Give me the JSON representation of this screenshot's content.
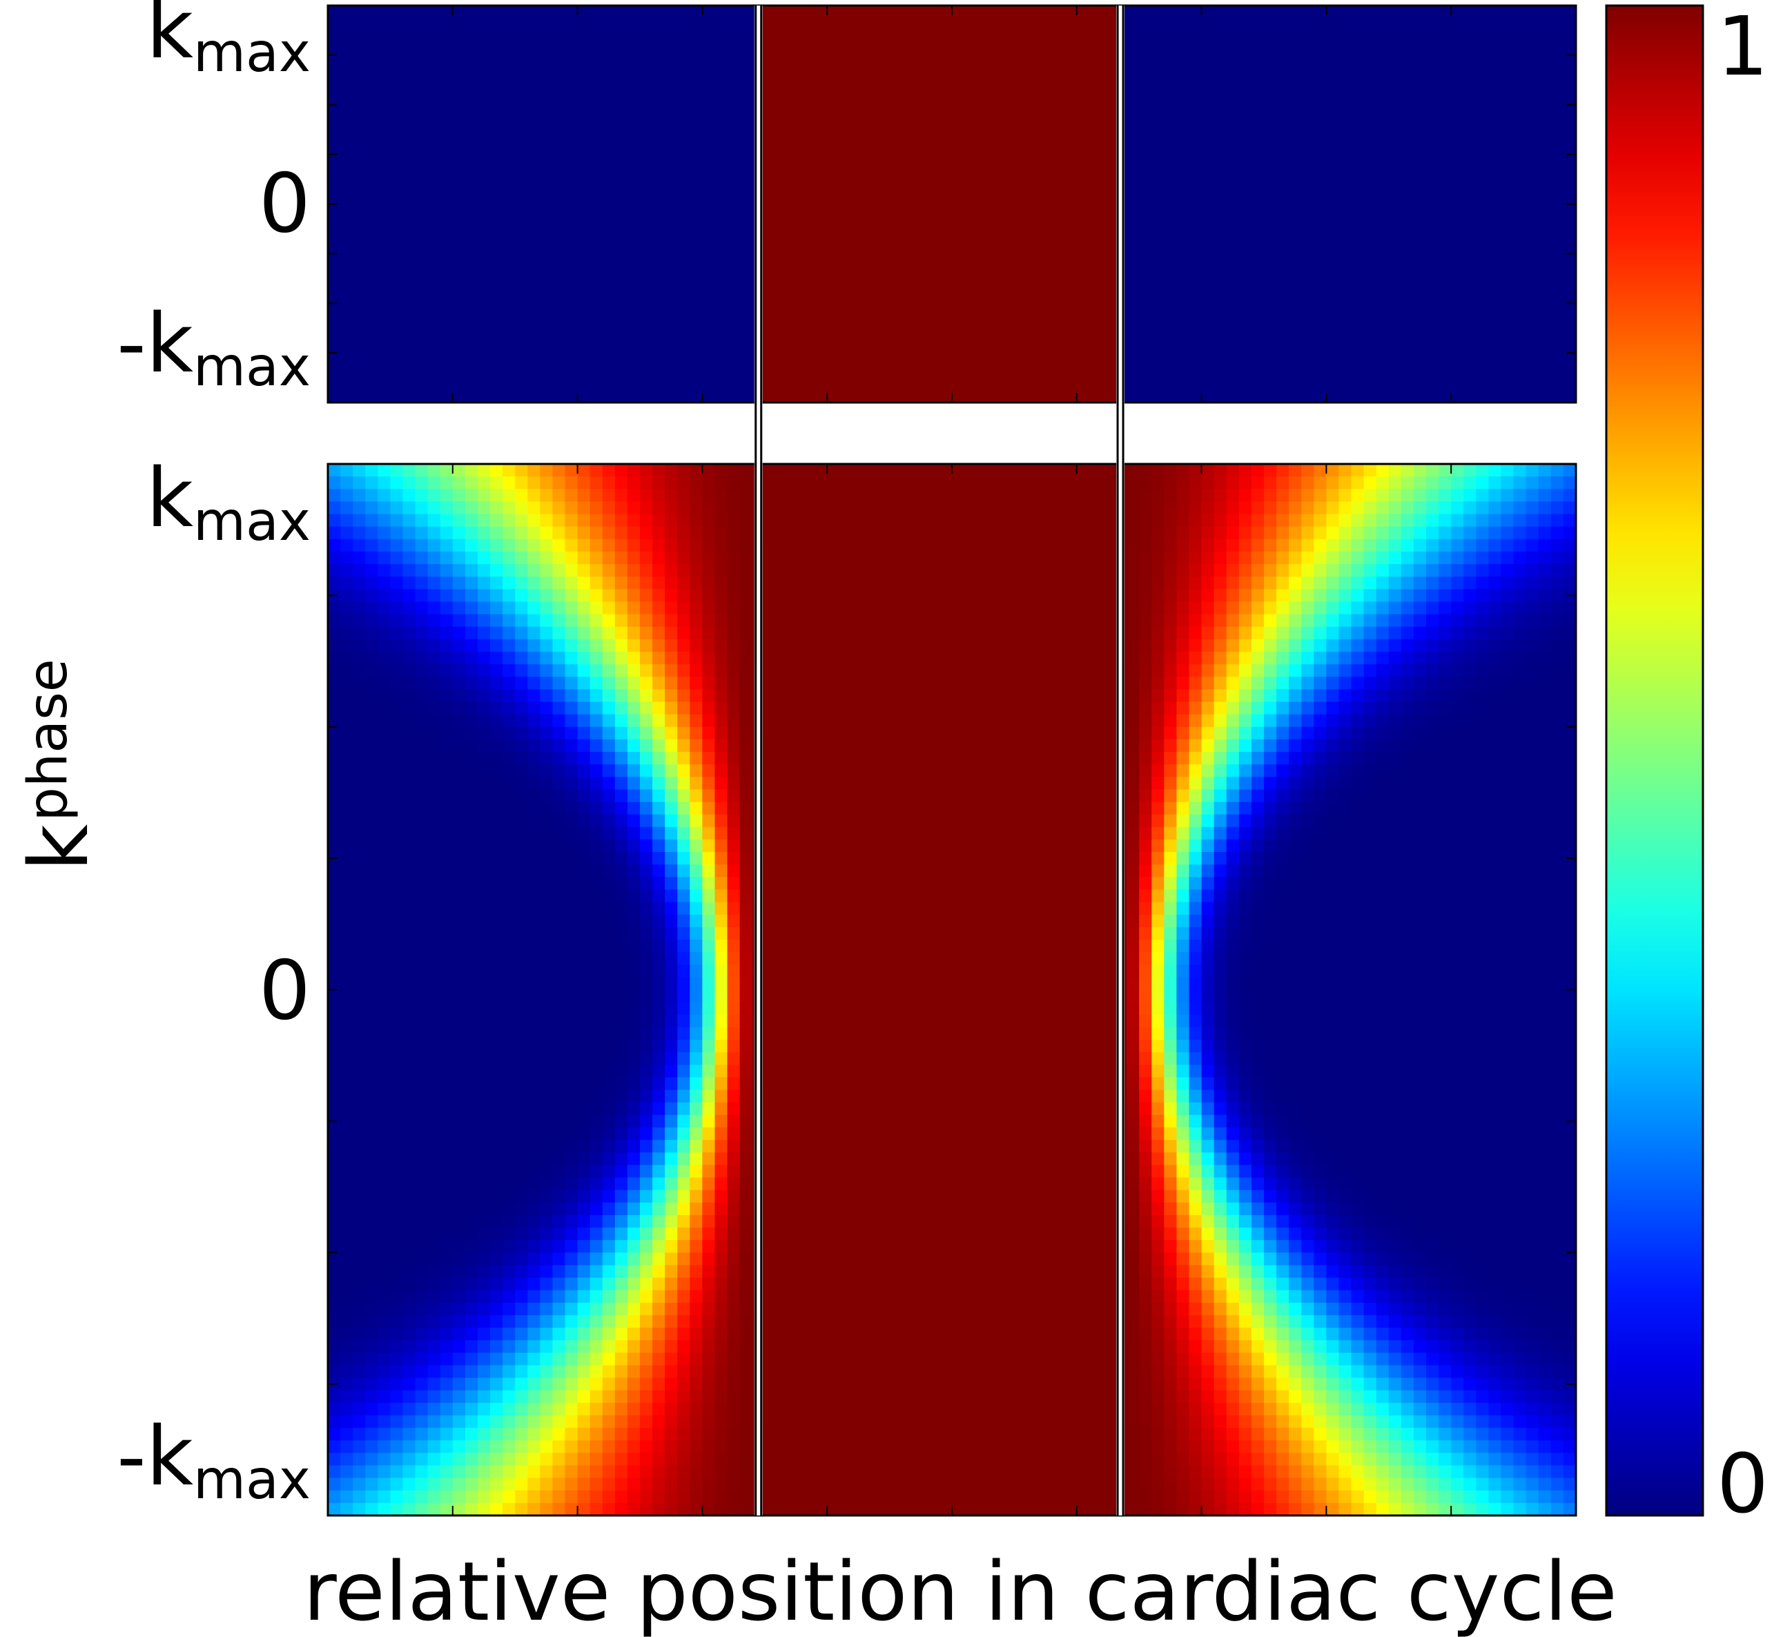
{
  "chart_data": [
    {
      "type": "heatmap",
      "panel": "top",
      "title": "",
      "xlabel": "",
      "ylabel": "",
      "y_tick_labels": [
        {
          "main": "k",
          "sub": "max"
        },
        {
          "main": "0",
          "sub": ""
        },
        {
          "main": "-k",
          "sub": "max"
        }
      ],
      "x_range": [
        0,
        1
      ],
      "y_range": [
        -1,
        1
      ],
      "x_boundaries": [
        0.345,
        0.635
      ],
      "regions": [
        {
          "x": [
            0,
            0.345
          ],
          "value": 0
        },
        {
          "x": [
            0.345,
            0.635
          ],
          "value": 1
        },
        {
          "x": [
            0.635,
            1
          ],
          "value": 0
        }
      ]
    },
    {
      "type": "heatmap",
      "panel": "bottom",
      "title": "",
      "xlabel": "relative position in cardiac cycle",
      "ylabel": {
        "main": "k",
        "sub": "phase"
      },
      "y_tick_labels": [
        {
          "main": "k",
          "sub": "max"
        },
        {
          "main": "0",
          "sub": ""
        },
        {
          "main": "-k",
          "sub": "max"
        }
      ],
      "x_range": [
        0,
        1
      ],
      "y_range": [
        -1,
        1
      ],
      "x_boundaries": [
        0.345,
        0.635
      ],
      "grid_columns": 100,
      "grid_rows": 84,
      "description_of_values": "value 1 inside acquisition window; outside, weighting decays with distance from window edge, with a wider transition band at |k| = kmax",
      "transition_width_at_k0": 0.03,
      "transition_width_at_kmax": 0.22,
      "falloff_shape": "gaussian"
    }
  ],
  "colorbar": {
    "colormap": "jet",
    "min_label": "0",
    "max_label": "1",
    "range": [
      0,
      1
    ]
  },
  "colors": {
    "low": "#00008f",
    "high": "#800000",
    "boundary_line": "#000000"
  }
}
